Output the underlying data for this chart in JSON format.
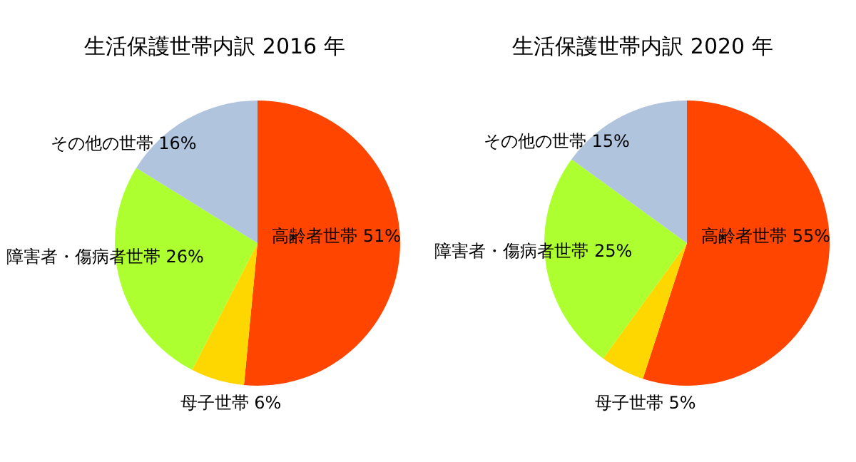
{
  "chart_data": [
    {
      "type": "pie",
      "title": "生活保護世帯内訳 2016 年",
      "categories": [
        "高齢者世帯",
        "母子世帯",
        "障害者・傷病者世帯",
        "その他の世帯"
      ],
      "values": [
        51,
        6,
        26,
        16
      ],
      "value_labels": [
        "51%",
        "6%",
        "26%",
        "16%"
      ],
      "colors": [
        "#ff4500",
        "#ffd700",
        "#adff2f",
        "#b0c4de"
      ],
      "legend": false
    },
    {
      "type": "pie",
      "title": "生活保護世帯内訳 2020 年",
      "categories": [
        "高齢者世帯",
        "母子世帯",
        "障害者・傷病者世帯",
        "その他の世帯"
      ],
      "values": [
        55,
        5,
        25,
        15
      ],
      "value_labels": [
        "55%",
        "5%",
        "25%",
        "15%"
      ],
      "colors": [
        "#ff4500",
        "#ffd700",
        "#adff2f",
        "#b0c4de"
      ],
      "legend": false
    }
  ]
}
